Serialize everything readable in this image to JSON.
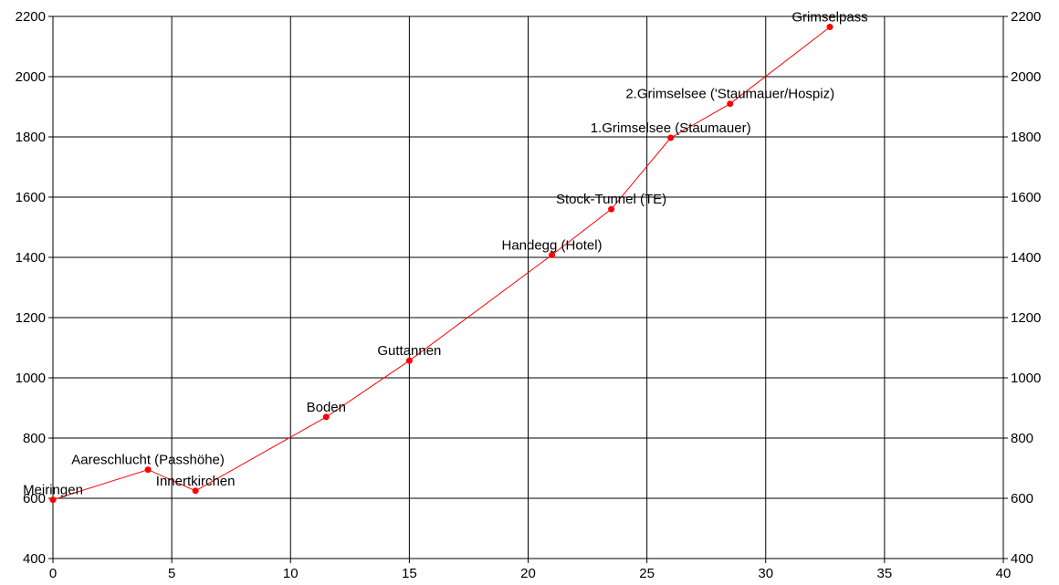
{
  "chart_data": {
    "type": "line",
    "title": "",
    "xlabel": "",
    "ylabel": "",
    "xlim": [
      0,
      40
    ],
    "ylim": [
      400,
      2200
    ],
    "x_ticks": [
      0,
      5,
      10,
      15,
      20,
      25,
      30,
      35,
      40
    ],
    "y_ticks": [
      400,
      600,
      800,
      1000,
      1200,
      1400,
      1600,
      1800,
      2000,
      2200
    ],
    "grid": true,
    "right_axis_mirrors_left": true,
    "line_color": "#ff0000",
    "marker_color": "#ff0000",
    "series": [
      {
        "points": [
          {
            "label": "Meiringen",
            "x": 0,
            "y": 595
          },
          {
            "label": "Aareschlucht (Passhöhe)",
            "x": 4,
            "y": 695
          },
          {
            "label": "Innertkirchen",
            "x": 6,
            "y": 625
          },
          {
            "label": "Boden",
            "x": 11.5,
            "y": 870
          },
          {
            "label": "Guttannen",
            "x": 15,
            "y": 1057
          },
          {
            "label": "Handegg (Hotel)",
            "x": 21,
            "y": 1408
          },
          {
            "label": "Stock-Tunnel (TE)",
            "x": 23.5,
            "y": 1560
          },
          {
            "label": "1.Grimselsee (Staumauer)",
            "x": 26,
            "y": 1797
          },
          {
            "label": "2.Grimselsee ('Staumauer/Hospiz)",
            "x": 28.5,
            "y": 1910
          },
          {
            "label": "Grimselpass",
            "x": 32.7,
            "y": 2165
          }
        ]
      }
    ]
  }
}
